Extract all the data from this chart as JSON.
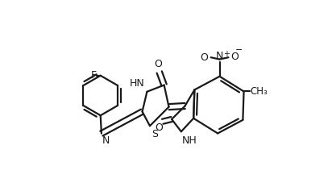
{
  "background_color": "#ffffff",
  "line_color": "#1a1a1a",
  "line_width": 1.6,
  "figsize": [
    4.12,
    2.37
  ],
  "dpi": 100,
  "xlim": [
    0,
    1
  ],
  "ylim": [
    0,
    1
  ]
}
